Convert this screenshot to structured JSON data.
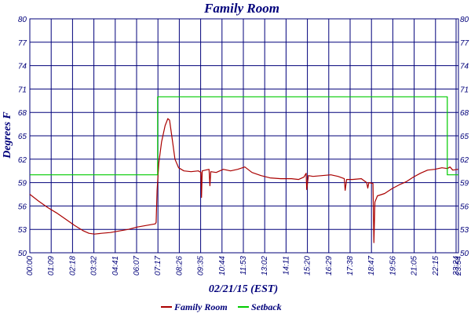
{
  "chart_data": {
    "type": "line",
    "title": "Family Room",
    "xlabel": "02/21/15 (EST)",
    "ylabel": "Degrees F",
    "ylim": [
      50,
      80
    ],
    "xlim_hours": [
      0,
      23.92
    ],
    "yticks": [
      "50",
      "53",
      "56",
      "59",
      "62",
      "65",
      "68",
      "71",
      "74",
      "77",
      "80"
    ],
    "xticks": [
      "00:00",
      "01:09",
      "02:18",
      "03:32",
      "04:41",
      "06:07",
      "07:17",
      "08:26",
      "09:35",
      "10:44",
      "11:53",
      "13:02",
      "14:11",
      "15:20",
      "16:29",
      "17:38",
      "18:47",
      "19:56",
      "21:05",
      "22:15",
      "23:24",
      "23:54"
    ],
    "grid": true,
    "legend_position": "bottom-center",
    "colors": {
      "family_room": "#aa0000",
      "setback": "#00cc00",
      "grid": "#00007a",
      "text": "#00007a"
    },
    "series": [
      {
        "name": "Family Room",
        "color": "#aa0000",
        "points": [
          [
            0.0,
            57.5
          ],
          [
            0.5,
            56.6
          ],
          [
            1.0,
            55.8
          ],
          [
            1.5,
            55.1
          ],
          [
            2.0,
            54.3
          ],
          [
            2.5,
            53.5
          ],
          [
            3.0,
            52.8
          ],
          [
            3.3,
            52.5
          ],
          [
            3.6,
            52.4
          ],
          [
            4.0,
            52.5
          ],
          [
            4.5,
            52.6
          ],
          [
            5.0,
            52.8
          ],
          [
            5.5,
            53.0
          ],
          [
            6.0,
            53.3
          ],
          [
            6.5,
            53.5
          ],
          [
            7.0,
            53.7
          ],
          [
            7.05,
            53.9
          ],
          [
            7.1,
            58.0
          ],
          [
            7.2,
            61.5
          ],
          [
            7.35,
            64.2
          ],
          [
            7.55,
            66.3
          ],
          [
            7.7,
            67.2
          ],
          [
            7.8,
            67.0
          ],
          [
            7.95,
            64.5
          ],
          [
            8.1,
            62.0
          ],
          [
            8.3,
            60.9
          ],
          [
            8.6,
            60.5
          ],
          [
            9.0,
            60.4
          ],
          [
            9.4,
            60.5
          ],
          [
            9.55,
            60.3
          ],
          [
            9.58,
            57.1
          ],
          [
            9.62,
            60.5
          ],
          [
            9.8,
            60.6
          ],
          [
            10.0,
            60.7
          ],
          [
            10.05,
            58.6
          ],
          [
            10.1,
            60.4
          ],
          [
            10.4,
            60.3
          ],
          [
            10.8,
            60.7
          ],
          [
            11.2,
            60.5
          ],
          [
            11.6,
            60.7
          ],
          [
            12.0,
            61.0
          ],
          [
            12.4,
            60.3
          ],
          [
            12.9,
            59.9
          ],
          [
            13.4,
            59.6
          ],
          [
            14.0,
            59.5
          ],
          [
            14.6,
            59.5
          ],
          [
            15.0,
            59.4
          ],
          [
            15.3,
            59.7
          ],
          [
            15.42,
            60.2
          ],
          [
            15.45,
            58.1
          ],
          [
            15.55,
            59.9
          ],
          [
            15.8,
            59.8
          ],
          [
            16.3,
            59.9
          ],
          [
            16.8,
            60.0
          ],
          [
            17.2,
            59.8
          ],
          [
            17.55,
            59.5
          ],
          [
            17.6,
            58.0
          ],
          [
            17.68,
            59.4
          ],
          [
            18.0,
            59.4
          ],
          [
            18.5,
            59.5
          ],
          [
            18.8,
            59.0
          ],
          [
            18.86,
            58.3
          ],
          [
            18.92,
            59.0
          ],
          [
            19.15,
            58.9
          ],
          [
            19.2,
            51.3
          ],
          [
            19.26,
            56.5
          ],
          [
            19.4,
            57.3
          ],
          [
            19.8,
            57.6
          ],
          [
            20.2,
            58.2
          ],
          [
            20.6,
            58.7
          ],
          [
            21.0,
            59.1
          ],
          [
            21.4,
            59.7
          ],
          [
            21.8,
            60.2
          ],
          [
            22.2,
            60.6
          ],
          [
            22.6,
            60.7
          ],
          [
            23.0,
            60.9
          ],
          [
            23.3,
            60.8
          ],
          [
            23.45,
            61.0
          ],
          [
            23.6,
            60.6
          ],
          [
            23.9,
            60.7
          ]
        ]
      },
      {
        "name": "Setback",
        "color": "#00cc00",
        "points": [
          [
            0.0,
            60.0
          ],
          [
            7.13,
            60.0
          ],
          [
            7.13,
            70.0
          ],
          [
            23.3,
            70.0
          ],
          [
            23.3,
            60.0
          ],
          [
            23.92,
            60.0
          ]
        ]
      }
    ]
  }
}
